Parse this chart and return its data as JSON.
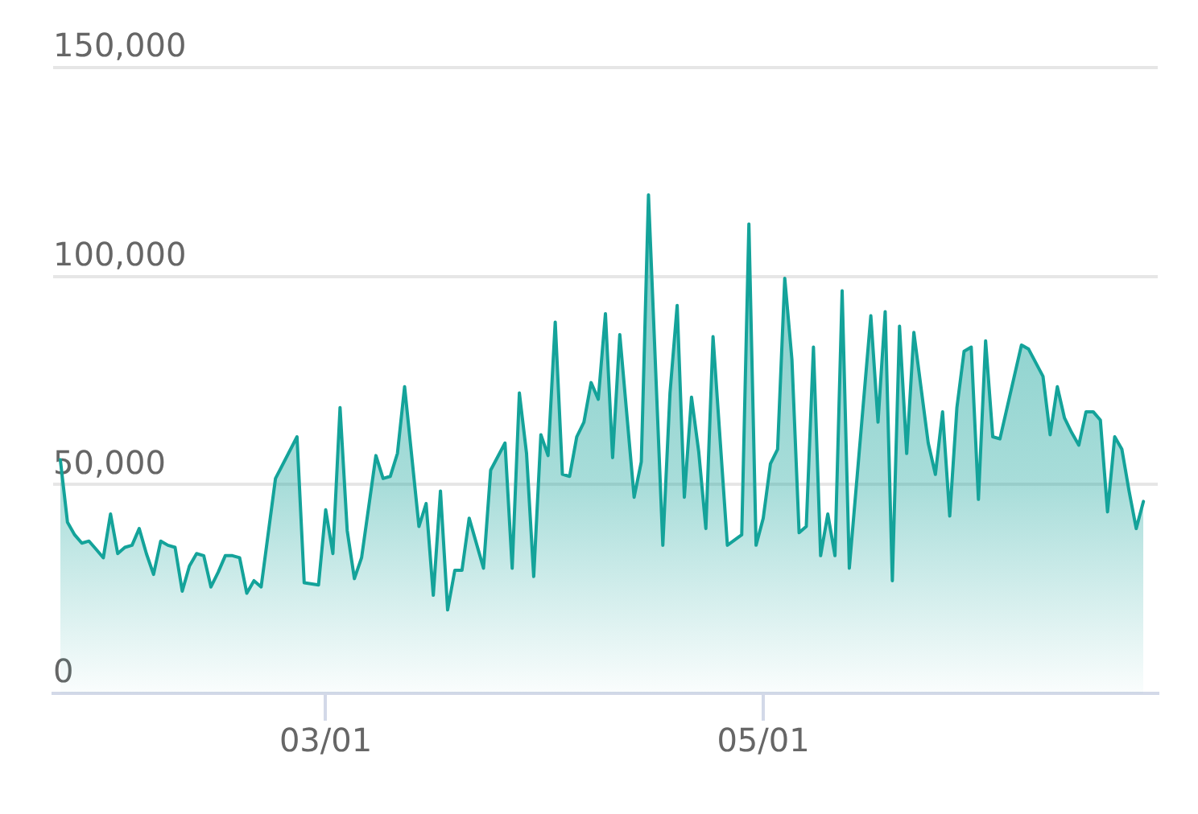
{
  "chart_data": {
    "type": "area",
    "color": "#14a39a",
    "marker": "none",
    "grid": "y",
    "x": [
      "--01-23",
      "--01-24",
      "--01-25",
      "--01-26",
      "--01-27",
      "--01-28",
      "--01-29",
      "--01-30",
      "--01-31",
      "--02-01",
      "--02-02",
      "--02-03",
      "--02-04",
      "--02-05",
      "--02-06",
      "--02-07",
      "--02-08",
      "--02-09",
      "--02-10",
      "--02-11",
      "--02-12",
      "--02-13",
      "--02-14",
      "--02-15",
      "--02-16",
      "--02-17",
      "--02-18",
      "--02-19",
      "--02-20",
      "--02-22",
      "--02-25",
      "--02-26",
      "--02-28",
      "--03-01",
      "--03-02",
      "--03-03",
      "--03-04",
      "--03-05",
      "--03-06",
      "--03-08",
      "--03-09",
      "--03-10",
      "--03-11",
      "--03-12",
      "--03-14",
      "--03-15",
      "--03-16",
      "--03-17",
      "--03-18",
      "--03-19",
      "--03-20",
      "--03-21",
      "--03-23",
      "--03-24",
      "--03-26",
      "--03-27",
      "--03-28",
      "--03-29",
      "--03-30",
      "--03-31",
      "--04-01",
      "--04-02",
      "--04-03",
      "--04-04",
      "--04-05",
      "--04-06",
      "--04-07",
      "--04-08",
      "--04-09",
      "--04-10",
      "--04-11",
      "--04-13",
      "--04-14",
      "--04-15",
      "--04-17",
      "--04-18",
      "--04-19",
      "--04-20",
      "--04-21",
      "--04-22",
      "--04-23",
      "--04-24",
      "--04-26",
      "--04-28",
      "--04-29",
      "--04-30",
      "--05-01",
      "--05-02",
      "--05-03",
      "--05-04",
      "--05-05",
      "--05-06",
      "--05-07",
      "--05-08",
      "--05-09",
      "--05-10",
      "--05-11",
      "--05-12",
      "--05-13",
      "--05-16",
      "--05-17",
      "--05-18",
      "--05-19",
      "--05-20",
      "--05-21",
      "--05-22",
      "--05-24",
      "--05-25",
      "--05-26",
      "--05-27",
      "--05-28",
      "--05-29",
      "--05-30",
      "--05-31",
      "--06-01",
      "--06-02",
      "--06-03",
      "--06-06",
      "--06-07",
      "--06-09",
      "--06-10",
      "--06-11",
      "--06-12",
      "--06-13",
      "--06-14",
      "--06-15",
      "--06-16",
      "--06-17",
      "--06-18",
      "--06-19",
      "--06-20",
      "--06-21",
      "--06-22",
      "--06-23"
    ],
    "values": [
      56000,
      41000,
      38000,
      36000,
      36500,
      34500,
      32500,
      43000,
      33500,
      35000,
      35500,
      39500,
      33500,
      28500,
      36500,
      35500,
      35000,
      24500,
      30500,
      33500,
      33000,
      25500,
      29000,
      33000,
      33000,
      32500,
      24000,
      27000,
      25500,
      51500,
      61500,
      26500,
      26000,
      44000,
      33500,
      68500,
      39000,
      27500,
      32500,
      57000,
      51500,
      52000,
      57500,
      73500,
      40000,
      45500,
      23500,
      48500,
      20000,
      29500,
      29500,
      42000,
      30000,
      53500,
      60000,
      30000,
      72000,
      57500,
      28000,
      62000,
      57000,
      89000,
      52500,
      52000,
      61500,
      65000,
      74500,
      70500,
      91000,
      56500,
      86000,
      47000,
      55500,
      119500,
      35500,
      72000,
      93000,
      47000,
      71000,
      58000,
      39500,
      85500,
      35500,
      38000,
      112500,
      35500,
      42000,
      55000,
      58500,
      99500,
      80000,
      38500,
      40000,
      83000,
      33000,
      43000,
      33000,
      96500,
      30000,
      90500,
      65000,
      91500,
      27000,
      88000,
      57500,
      86500,
      60000,
      52500,
      67500,
      42500,
      68500,
      82000,
      83000,
      46500,
      84500,
      61500,
      61000,
      83500,
      82500,
      76000,
      62000,
      73500,
      66000,
      62500,
      59500,
      67500,
      67500,
      65500,
      43500,
      61500,
      58500,
      48500,
      39500,
      46000
    ],
    "xlim": [
      "--01-22",
      "--06-25"
    ],
    "xticks": [
      {
        "value": "--03-01",
        "label": "03/01"
      },
      {
        "value": "--05-01",
        "label": "05/01"
      }
    ],
    "ylim": [
      0,
      150000
    ],
    "yticks": [
      0,
      {
        "value": 50000,
        "label": "50,000"
      },
      {
        "value": 100000,
        "label": "100,000"
      },
      {
        "value": 150000,
        "label": "150,000"
      }
    ]
  }
}
